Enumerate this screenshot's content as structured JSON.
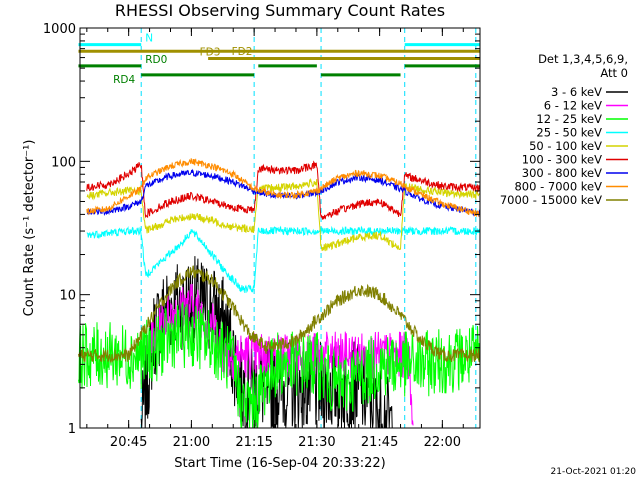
{
  "chart_data": {
    "type": "line",
    "title": "RHESSI Observing Summary Count Rates",
    "xlabel": "Start Time (16-Sep-04 20:33:22)",
    "ylabel": "Count Rate (s⁻¹ detector⁻¹)",
    "yscale": "log",
    "xlim": [
      "20:33:22",
      "22:09:00"
    ],
    "ylim": [
      1,
      1000
    ],
    "x_ticks": [
      "20:45",
      "21:00",
      "21:15",
      "21:30",
      "21:45",
      "22:00"
    ],
    "y_ticks": [
      "1",
      "10",
      "100",
      "1000"
    ],
    "detector_note": "Det 1,3,4,5,6,9,",
    "attenuator_note": "Att 0",
    "footer_date": "21-Oct-2021 01:20",
    "colors": {
      "3 - 6 keV": "#000000",
      "6 - 12 keV": "#ff00ff",
      "12 - 25 keV": "#00ff00",
      "25 - 50 keV": "#00ffff",
      "50 - 100 keV": "#d4d400",
      "100 - 300 keV": "#e00000",
      "300 - 800 keV": "#0000ee",
      "800 - 7000 keV": "#ff8c00",
      "7000 - 15000 keV": "#808000"
    },
    "series": [
      {
        "name": "3 - 6 keV",
        "points": [
          [
            "20:48",
            1
          ],
          [
            "20:49",
            1.8
          ],
          [
            "20:51",
            5
          ],
          [
            "20:54",
            8
          ],
          [
            "21:00",
            9
          ],
          [
            "21:05",
            8
          ],
          [
            "21:08",
            6
          ],
          [
            "21:10",
            3.5
          ],
          [
            "21:12",
            2
          ],
          [
            "21:16",
            2
          ],
          [
            "21:30",
            2
          ],
          [
            "21:40",
            2
          ],
          [
            "21:44",
            1.5
          ],
          [
            "21:48",
            1
          ]
        ]
      },
      {
        "name": "6 - 12 keV",
        "points": [
          [
            "20:50",
            4
          ],
          [
            "20:54",
            7
          ],
          [
            "21:00",
            8.5
          ],
          [
            "21:05",
            6
          ],
          [
            "21:08",
            3.5
          ],
          [
            "21:15",
            3.5
          ],
          [
            "21:30",
            3.5
          ],
          [
            "21:45",
            3.5
          ],
          [
            "21:52",
            3.5
          ],
          [
            "21:53",
            1
          ]
        ]
      },
      {
        "name": "12 - 25 keV",
        "points": [
          [
            "20:33",
            3.5
          ],
          [
            "20:45",
            3.5
          ],
          [
            "20:48",
            3.5
          ],
          [
            "20:52",
            4
          ],
          [
            "20:56",
            5
          ],
          [
            "21:00",
            5
          ],
          [
            "21:05",
            4.5
          ],
          [
            "21:10",
            3
          ],
          [
            "21:12",
            1.5
          ],
          [
            "21:15",
            1.5
          ],
          [
            "21:20",
            3
          ],
          [
            "21:30",
            3
          ],
          [
            "21:35",
            2
          ],
          [
            "21:45",
            3
          ],
          [
            "21:55",
            3
          ],
          [
            "22:09",
            3.5
          ]
        ]
      },
      {
        "name": "25 - 50 keV",
        "points": [
          [
            "20:35",
            28
          ],
          [
            "20:40",
            29
          ],
          [
            "20:45",
            30
          ],
          [
            "20:48",
            30
          ],
          [
            "20:49",
            14
          ],
          [
            "20:53",
            18
          ],
          [
            "20:58",
            25
          ],
          [
            "21:00",
            30
          ],
          [
            "21:03",
            24
          ],
          [
            "21:08",
            15
          ],
          [
            "21:12",
            11
          ],
          [
            "21:15",
            11
          ],
          [
            "21:16",
            30
          ],
          [
            "21:25",
            30
          ],
          [
            "21:30",
            30
          ],
          [
            "21:31",
            30
          ],
          [
            "21:40",
            30
          ],
          [
            "21:46",
            30
          ],
          [
            "21:48",
            30
          ],
          [
            "21:50",
            30
          ],
          [
            "22:00",
            30
          ],
          [
            "22:09",
            30
          ]
        ]
      },
      {
        "name": "50 - 100 keV",
        "points": [
          [
            "20:35",
            55
          ],
          [
            "20:40",
            58
          ],
          [
            "20:45",
            60
          ],
          [
            "20:48",
            60
          ],
          [
            "20:49",
            30
          ],
          [
            "20:55",
            36
          ],
          [
            "21:00",
            39
          ],
          [
            "21:05",
            36
          ],
          [
            "21:10",
            32
          ],
          [
            "21:15",
            31
          ],
          [
            "21:16",
            62
          ],
          [
            "21:25",
            65
          ],
          [
            "21:30",
            70
          ],
          [
            "21:31",
            22
          ],
          [
            "21:40",
            27
          ],
          [
            "21:45",
            28
          ],
          [
            "21:50",
            22
          ],
          [
            "21:51",
            65
          ],
          [
            "22:00",
            58
          ],
          [
            "22:09",
            56
          ]
        ]
      },
      {
        "name": "100 - 300 keV",
        "points": [
          [
            "20:35",
            64
          ],
          [
            "20:40",
            67
          ],
          [
            "20:45",
            80
          ],
          [
            "20:48",
            95
          ],
          [
            "20:49",
            40
          ],
          [
            "20:55",
            50
          ],
          [
            "21:00",
            55
          ],
          [
            "21:05",
            50
          ],
          [
            "21:10",
            45
          ],
          [
            "21:15",
            43
          ],
          [
            "21:16",
            88
          ],
          [
            "21:25",
            85
          ],
          [
            "21:30",
            95
          ],
          [
            "21:31",
            38
          ],
          [
            "21:40",
            48
          ],
          [
            "21:45",
            50
          ],
          [
            "21:50",
            40
          ],
          [
            "21:51",
            78
          ],
          [
            "22:00",
            65
          ],
          [
            "22:09",
            63
          ]
        ]
      },
      {
        "name": "300 - 800 keV",
        "points": [
          [
            "20:35",
            42
          ],
          [
            "20:40",
            42
          ],
          [
            "20:45",
            46
          ],
          [
            "20:48",
            50
          ],
          [
            "20:49",
            65
          ],
          [
            "20:55",
            78
          ],
          [
            "21:00",
            82
          ],
          [
            "21:05",
            78
          ],
          [
            "21:10",
            70
          ],
          [
            "21:15",
            60
          ],
          [
            "21:20",
            55
          ],
          [
            "21:25",
            55
          ],
          [
            "21:30",
            58
          ],
          [
            "21:35",
            70
          ],
          [
            "21:40",
            76
          ],
          [
            "21:45",
            72
          ],
          [
            "21:50",
            62
          ],
          [
            "21:55",
            52
          ],
          [
            "22:00",
            46
          ],
          [
            "22:09",
            41
          ]
        ]
      },
      {
        "name": "800 - 7000 keV",
        "points": [
          [
            "20:35",
            42
          ],
          [
            "20:40",
            44
          ],
          [
            "20:45",
            55
          ],
          [
            "20:48",
            62
          ],
          [
            "20:49",
            75
          ],
          [
            "20:55",
            92
          ],
          [
            "21:00",
            100
          ],
          [
            "21:05",
            92
          ],
          [
            "21:10",
            80
          ],
          [
            "21:15",
            62
          ],
          [
            "21:20",
            56
          ],
          [
            "21:25",
            56
          ],
          [
            "21:30",
            60
          ],
          [
            "21:35",
            75
          ],
          [
            "21:40",
            82
          ],
          [
            "21:45",
            78
          ],
          [
            "21:50",
            68
          ],
          [
            "21:55",
            56
          ],
          [
            "22:00",
            48
          ],
          [
            "22:09",
            40
          ]
        ]
      },
      {
        "name": "7000 - 15000 keV",
        "points": [
          [
            "20:33",
            3.5
          ],
          [
            "20:45",
            3.5
          ],
          [
            "20:48",
            5
          ],
          [
            "20:52",
            8
          ],
          [
            "20:56",
            12
          ],
          [
            "21:00",
            15
          ],
          [
            "21:05",
            13
          ],
          [
            "21:10",
            8
          ],
          [
            "21:14",
            5
          ],
          [
            "21:18",
            4
          ],
          [
            "21:25",
            4.5
          ],
          [
            "21:30",
            6.5
          ],
          [
            "21:35",
            9
          ],
          [
            "21:40",
            11
          ],
          [
            "21:45",
            10
          ],
          [
            "21:50",
            7
          ],
          [
            "21:55",
            4.5
          ],
          [
            "22:00",
            3.5
          ],
          [
            "22:09",
            3.5
          ]
        ]
      }
    ],
    "attenuator_bars": [
      {
        "label": "N",
        "color": "#00ffff",
        "y": 750,
        "segments": [
          [
            "20:33",
            "20:48"
          ],
          [
            "21:51",
            "22:09"
          ]
        ]
      },
      {
        "label": "FD2",
        "color": "#a09000",
        "y": 670,
        "segments": [
          [
            "20:33",
            "22:09"
          ]
        ]
      },
      {
        "label": "FD3",
        "color": "#a09000",
        "y": 590,
        "segments": [
          [
            "21:04",
            "22:09"
          ]
        ]
      },
      {
        "label": "RD0",
        "color": "#008000",
        "y": 520,
        "segments": [
          [
            "20:33",
            "20:48"
          ],
          [
            "21:16",
            "21:30"
          ],
          [
            "21:51",
            "22:09"
          ]
        ]
      },
      {
        "label": "RD4",
        "color": "#008000",
        "y": 445,
        "segments": [
          [
            "20:48",
            "21:15"
          ],
          [
            "21:31",
            "21:50"
          ]
        ]
      }
    ],
    "saa_markers": [
      "20:48",
      "21:15",
      "21:31",
      "21:51",
      "22:08"
    ]
  }
}
